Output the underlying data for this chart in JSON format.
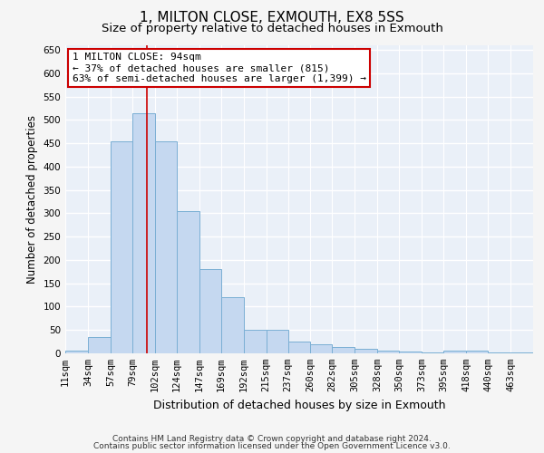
{
  "title1": "1, MILTON CLOSE, EXMOUTH, EX8 5SS",
  "title2": "Size of property relative to detached houses in Exmouth",
  "xlabel": "Distribution of detached houses by size in Exmouth",
  "ylabel": "Number of detached properties",
  "categories": [
    "11sqm",
    "34sqm",
    "57sqm",
    "79sqm",
    "102sqm",
    "124sqm",
    "147sqm",
    "169sqm",
    "192sqm",
    "215sqm",
    "237sqm",
    "260sqm",
    "282sqm",
    "305sqm",
    "328sqm",
    "350sqm",
    "373sqm",
    "395sqm",
    "418sqm",
    "440sqm",
    "463sqm"
  ],
  "values": [
    5,
    35,
    455,
    515,
    455,
    305,
    180,
    120,
    50,
    50,
    25,
    20,
    13,
    10,
    5,
    3,
    2,
    5,
    5,
    2,
    2
  ],
  "bar_color": "#c5d8f0",
  "bar_edge_color": "#7aafd4",
  "property_line_x": 94,
  "bin_edges": [
    11,
    34,
    57,
    79,
    102,
    124,
    147,
    169,
    192,
    215,
    237,
    260,
    282,
    305,
    328,
    350,
    373,
    395,
    418,
    440,
    463,
    486
  ],
  "annotation_text": "1 MILTON CLOSE: 94sqm\n← 37% of detached houses are smaller (815)\n63% of semi-detached houses are larger (1,399) →",
  "annotation_box_color": "#ffffff",
  "annotation_box_edge_color": "#cc0000",
  "footer1": "Contains HM Land Registry data © Crown copyright and database right 2024.",
  "footer2": "Contains public sector information licensed under the Open Government Licence v3.0.",
  "ylim": [
    0,
    660
  ],
  "yticks": [
    0,
    50,
    100,
    150,
    200,
    250,
    300,
    350,
    400,
    450,
    500,
    550,
    600,
    650
  ],
  "bg_color": "#eaf0f8",
  "grid_color": "#ffffff",
  "vline_color": "#cc0000",
  "title1_fontsize": 11,
  "title2_fontsize": 9.5,
  "xlabel_fontsize": 9,
  "ylabel_fontsize": 8.5,
  "tick_fontsize": 7.5,
  "annotation_fontsize": 8,
  "footer_fontsize": 6.5
}
